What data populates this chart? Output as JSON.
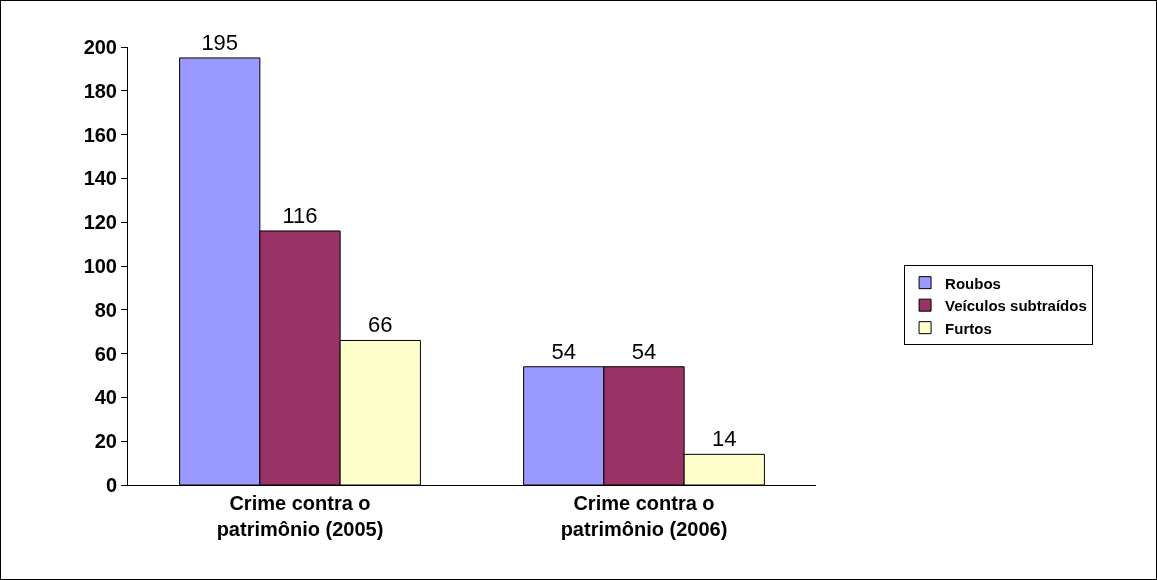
{
  "chart_data": {
    "type": "bar",
    "categories": [
      "Crime contra o patrimônio (2005)",
      "Crime contra o patrimônio (2006)"
    ],
    "series": [
      {
        "name": "Roubos",
        "color": "#9999ff",
        "values": [
          195,
          54
        ]
      },
      {
        "name": "Veículos subtraídos",
        "color": "#993366",
        "values": [
          116,
          54
        ]
      },
      {
        "name": "Furtos",
        "color": "#ffffcc",
        "values": [
          66,
          14
        ]
      }
    ],
    "ylim": [
      0,
      200
    ],
    "yticks": [
      0,
      20,
      40,
      60,
      80,
      100,
      120,
      140,
      160,
      180,
      200
    ],
    "grid": false,
    "legend": "right",
    "data_labels": true
  }
}
